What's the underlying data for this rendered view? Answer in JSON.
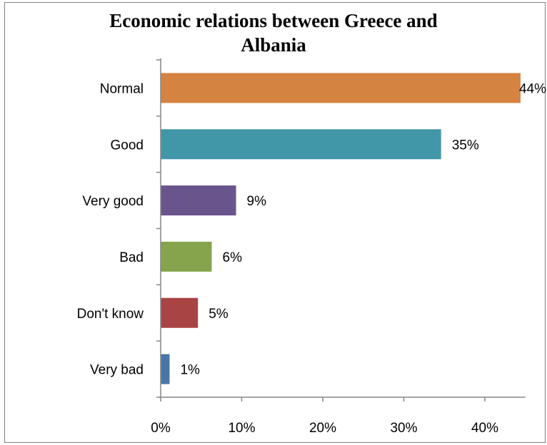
{
  "chart_data": {
    "type": "bar",
    "orientation": "horizontal",
    "title": "Economic relations between Greece and Albania",
    "title_lines": [
      "Economic relations between Greece and",
      "Albania"
    ],
    "xlabel": "",
    "ylabel": "",
    "categories": [
      "Normal",
      "Good",
      "Very good",
      "Bad",
      "Don't know",
      "Very bad"
    ],
    "values": [
      44.4,
      34.6,
      9.3,
      6.3,
      4.6,
      1.1
    ],
    "data_labels": [
      "44%",
      "35%",
      "9%",
      "6%",
      "5%",
      "1%"
    ],
    "colors": [
      "#d58340",
      "#4196a8",
      "#6a548c",
      "#86a44c",
      "#a84444",
      "#4a75a8"
    ],
    "x_ticks": [
      0,
      10,
      20,
      30,
      40
    ],
    "x_tick_labels": [
      "0%",
      "10%",
      "20%",
      "30%",
      "40%"
    ],
    "xlim": [
      0,
      45
    ],
    "grid": false,
    "legend": "none"
  }
}
